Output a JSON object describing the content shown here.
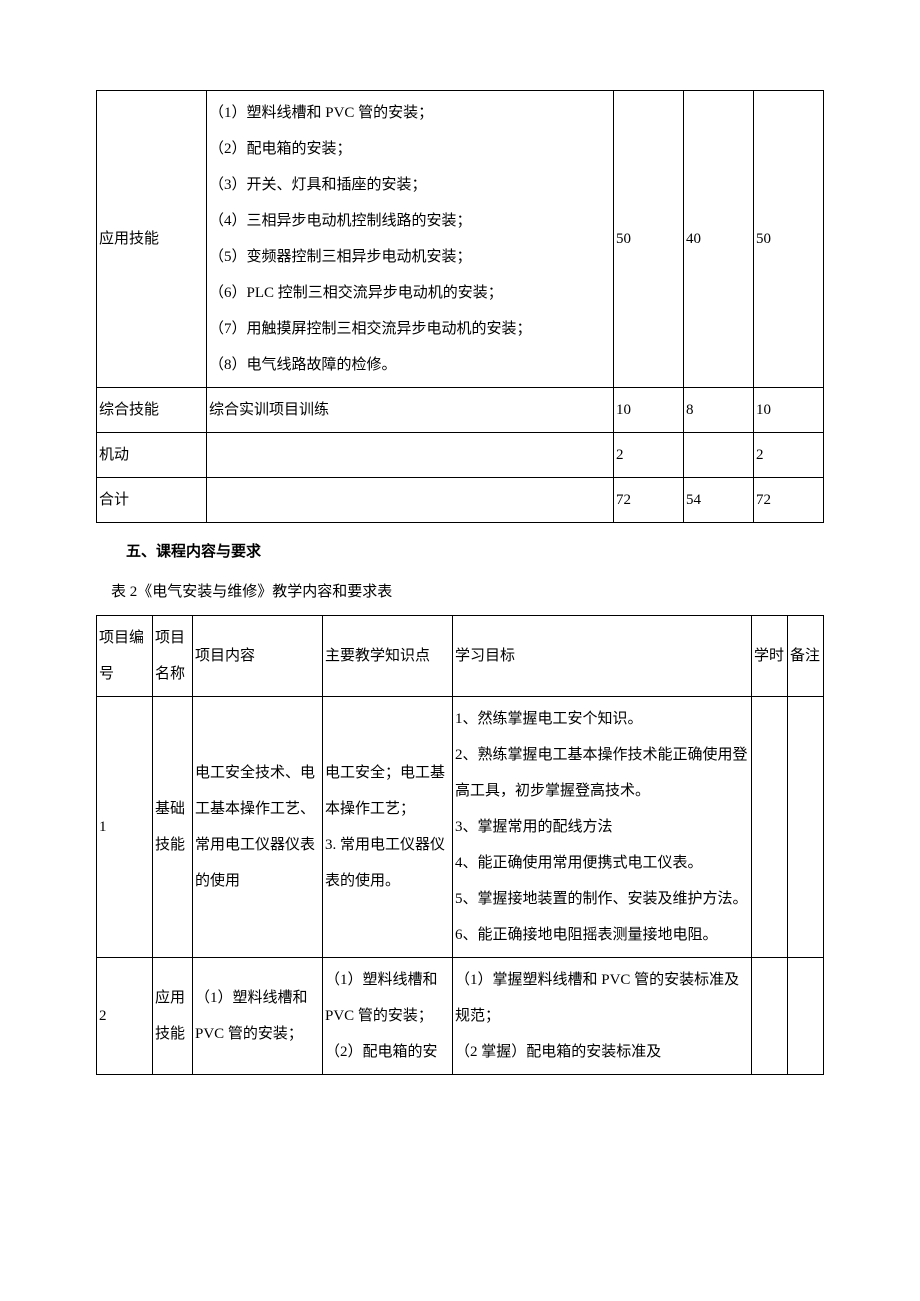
{
  "table1": {
    "rows": [
      {
        "c0": "应用技能",
        "c1": "（1）塑料线槽和 PVC 管的安装；\n（2）配电箱的安装；\n（3）开关、灯具和插座的安装；\n（4）三相异步电动机控制线路的安装；\n（5）变频器控制三相异步电动机安装；\n（6）PLC 控制三相交流异步电动机的安装；\n（7）用触摸屏控制三相交流异步电动机的安装；\n（8）电气线路故障的检修。",
        "c2": "50",
        "c3": "40",
        "c4": "50"
      },
      {
        "c0": "综合技能",
        "c1": "综合实训项目训练",
        "c2": "10",
        "c3": "8",
        "c4": "10"
      },
      {
        "c0": "机动",
        "c1": "",
        "c2": "2",
        "c3": "",
        "c4": "2"
      },
      {
        "c0": "合计",
        "c1": "",
        "c2": "72",
        "c3": "54",
        "c4": "72"
      }
    ]
  },
  "heading": "五、课程内容与要求",
  "caption": "表 2《电气安装与维修》教学内容和要求表",
  "table2": {
    "header": {
      "c0": "项目编号",
      "c1": "项目名称",
      "c2": "项目内容",
      "c3": "主要教学知识点",
      "c4": "学习目标",
      "c5": "学时",
      "c6": "备注"
    },
    "rows": [
      {
        "c0": "1",
        "c1": "基础技能",
        "c2": "电工安全技术、电工基本操作工艺、常用电工仪器仪表的使用",
        "c3": "电工安全；电工基本操作工艺；\n3. 常用电工仪器仪表的使用。",
        "c4": "1、然练掌握电工安个知识。\n2、熟练掌握电工基本操作技术能正确使用登高工具，初步掌握登高技术。\n3、掌握常用的配线方法\n4、能正确使用常用便携式电工仪表。\n5、掌握接地装置的制作、安装及维护方法。\n6、能正确接地电阻摇表测量接地电阻。",
        "c5": "",
        "c6": ""
      },
      {
        "c0": "2",
        "c1": "应用技能",
        "c2": "（1）塑料线槽和\nPVC 管的安装；",
        "c3": "（1）塑料线槽和\nPVC 管的安装；\n（2）配电箱的安",
        "c4": "（1）掌握塑料线槽和 PVC 管的安装标准及规范；\n（2 掌握）配电箱的安装标准及",
        "c5": "",
        "c6": ""
      }
    ]
  }
}
